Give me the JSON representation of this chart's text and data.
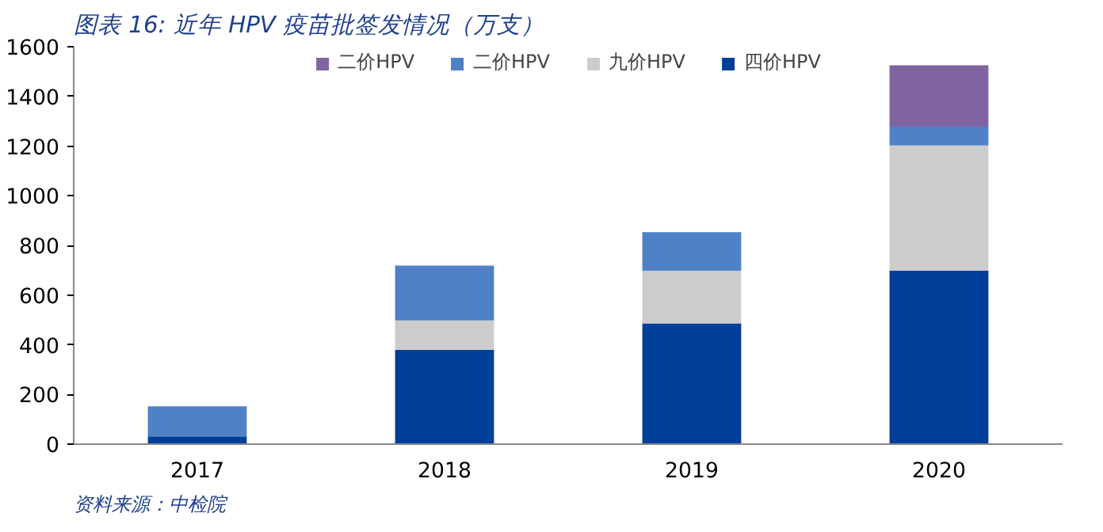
{
  "chart_data": {
    "type": "bar",
    "title": "图表 16: 近年 HPV 疫苗批签发情况（万支）",
    "categories": [
      "2017",
      "2018",
      "2019",
      "2020"
    ],
    "stacked": true,
    "series": [
      {
        "name": "四价HPV",
        "color": "#003f98",
        "values": [
          31,
          380,
          486,
          698
        ]
      },
      {
        "name": "九价HPV",
        "color": "#cccccc",
        "values": [
          0,
          118,
          212,
          504
        ]
      },
      {
        "name": "二价HPV",
        "color": "#4f81c6",
        "values": [
          121,
          221,
          155,
          76
        ]
      },
      {
        "name": "二价HPV",
        "color": "#8064a2",
        "values": [
          0,
          0,
          0,
          247
        ]
      }
    ],
    "ylim": [
      0,
      1600
    ],
    "yticks": [
      0,
      200,
      400,
      600,
      800,
      1000,
      1200,
      1400,
      1600
    ],
    "legend": "top",
    "annotations": [
      "资料来源：中检院"
    ]
  }
}
